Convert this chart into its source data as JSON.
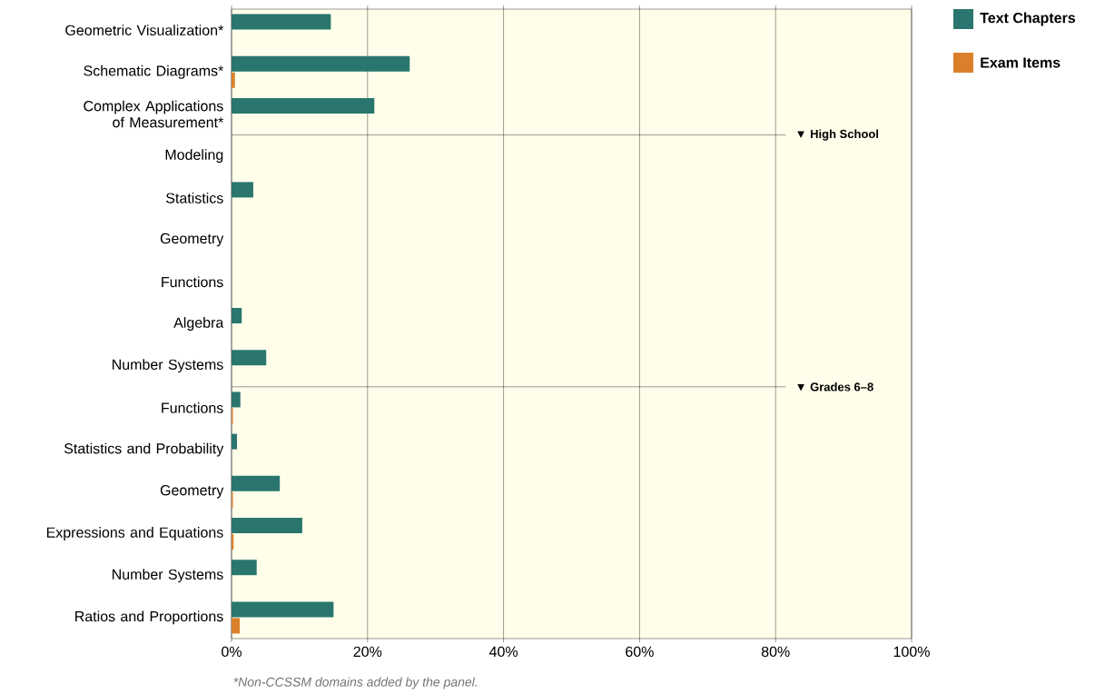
{
  "chart_data": {
    "type": "bar",
    "orientation": "horizontal",
    "categories": [
      "Geometric Visualization*",
      "Schematic Diagrams*",
      "Complex Applications of Measurement*",
      "Modeling",
      "Statistics",
      "Geometry",
      "Functions",
      "Algebra",
      "Number Systems",
      "Functions",
      "Statistics and Probability",
      "Geometry",
      "Expressions and Equations",
      "Number Systems",
      "Ratios and Proportions"
    ],
    "series": [
      {
        "name": "Text Chapters",
        "color": "#2a766e",
        "values": [
          14.6,
          26.2,
          21.0,
          0,
          3.2,
          0,
          0,
          1.5,
          5.1,
          1.3,
          0.8,
          7.1,
          10.4,
          3.7,
          15.0
        ]
      },
      {
        "name": "Exam Items",
        "color": "#db7f2a",
        "values": [
          0,
          0.5,
          0,
          0,
          0,
          0,
          0,
          0,
          0,
          0.2,
          0,
          0.2,
          0.3,
          0,
          1.2
        ]
      }
    ],
    "xlim": [
      0,
      100
    ],
    "xticks": [
      {
        "value": 0,
        "label": "0%"
      },
      {
        "value": 20,
        "label": "20%"
      },
      {
        "value": 40,
        "label": "40%"
      },
      {
        "value": 60,
        "label": "60%"
      },
      {
        "value": 80,
        "label": "80%"
      },
      {
        "value": 100,
        "label": "100%"
      }
    ],
    "grid": "x",
    "legend": "top right",
    "annotations": [
      "*Non-CCSSM domains added by the panel.",
      "▼ High School",
      "▼ Grades 6–8"
    ]
  }
}
